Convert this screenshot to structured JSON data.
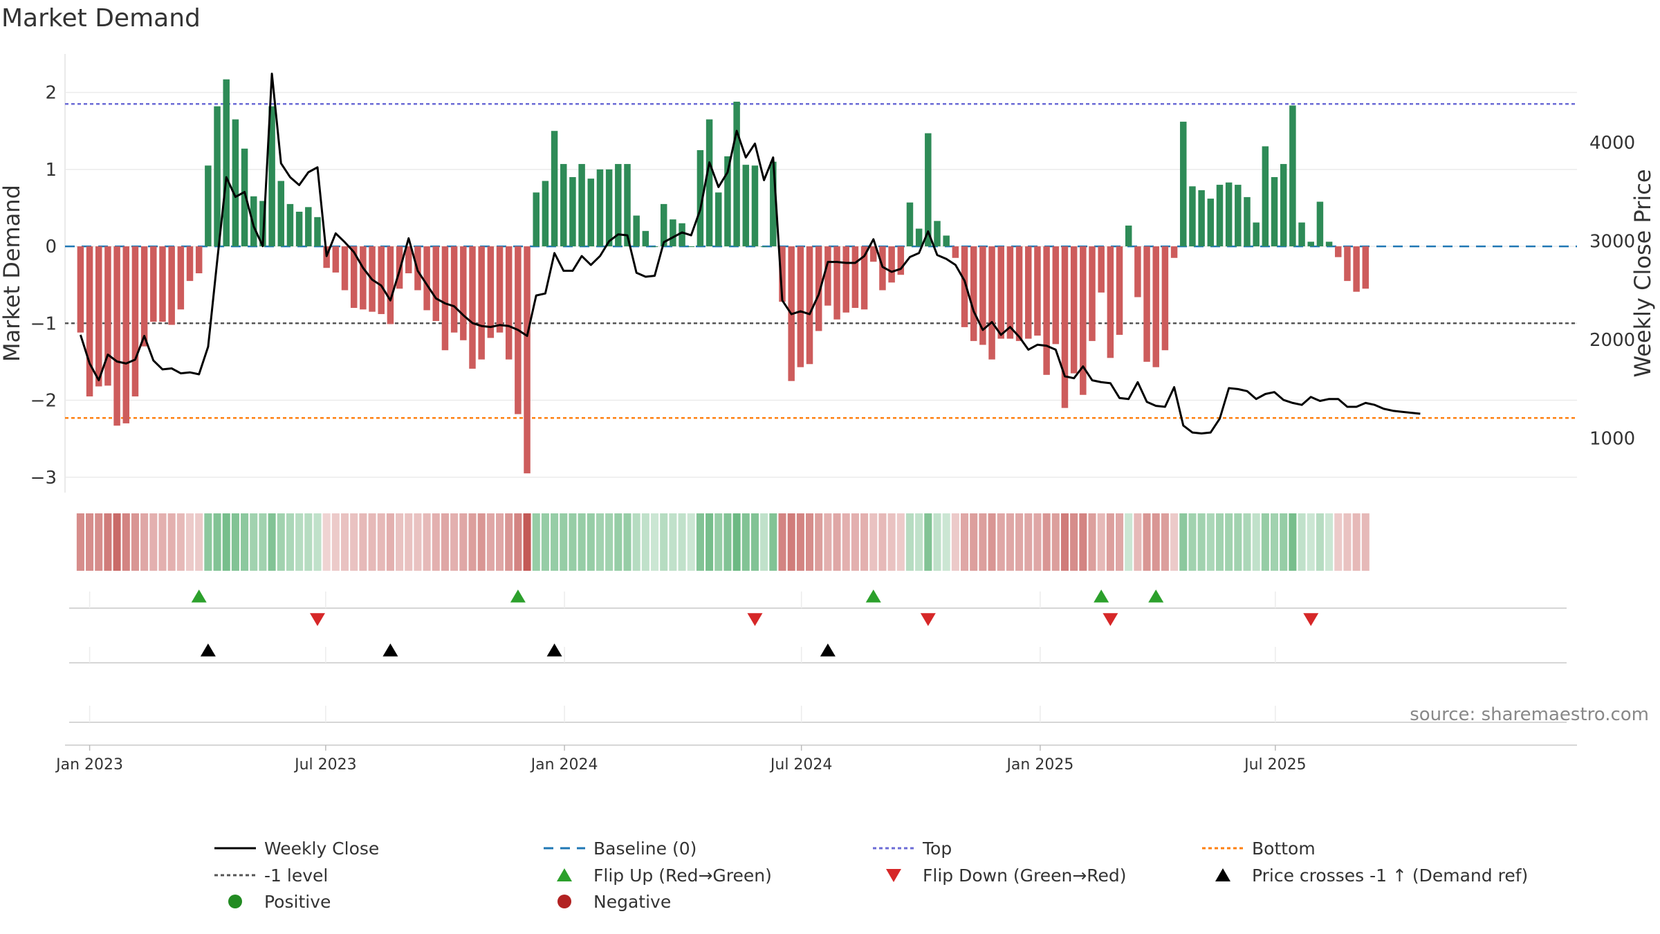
{
  "chart_data": {
    "type": "bar",
    "title": "Market Demand",
    "ylabel": "Market Demand",
    "y2label": "Weekly Close Price",
    "ylim": [
      -3.2,
      2.5
    ],
    "y2lim": [
      450,
      4900
    ],
    "yticks": [
      2,
      1,
      0,
      -1,
      -2,
      -3
    ],
    "ytick_labels": [
      "2",
      "1",
      "0",
      "−1",
      "−2",
      "−3"
    ],
    "y2ticks": [
      4000,
      3000,
      2000,
      1000
    ],
    "y2tick_labels": [
      "4000",
      "3000",
      "2000",
      "1000"
    ],
    "xlim": [
      -1.7,
      164.2
    ],
    "xticks": [
      {
        "label": "Jan 2023",
        "week": 1
      },
      {
        "label": "Jul 2023",
        "week": 26.9
      },
      {
        "label": "Jan 2024",
        "week": 53.1
      },
      {
        "label": "Jul 2024",
        "week": 79.1
      },
      {
        "label": "Jan 2025",
        "week": 105.3
      },
      {
        "label": "Jul 2025",
        "week": 131.1
      }
    ],
    "demand": [
      -1.12,
      -1.95,
      -1.82,
      -1.81,
      -2.33,
      -2.3,
      -1.95,
      -1.3,
      -0.98,
      -0.98,
      -1.02,
      -0.82,
      -0.45,
      -0.35,
      1.05,
      1.82,
      2.17,
      1.65,
      1.27,
      0.65,
      0.59,
      1.82,
      0.85,
      0.55,
      0.45,
      0.51,
      0.38,
      -0.28,
      -0.34,
      -0.57,
      -0.8,
      -0.82,
      -0.85,
      -0.88,
      -1.01,
      -0.55,
      -0.35,
      -0.57,
      -0.83,
      -0.97,
      -1.35,
      -1.12,
      -1.22,
      -1.59,
      -1.47,
      -1.19,
      -1.12,
      -1.47,
      -2.18,
      -2.95,
      0.7,
      0.85,
      1.5,
      1.07,
      0.9,
      1.07,
      0.88,
      1.0,
      1.0,
      1.07,
      1.07,
      0.4,
      0.2,
      0.0,
      0.55,
      0.35,
      0.3,
      0.0,
      1.25,
      1.65,
      0.7,
      1.17,
      1.88,
      1.06,
      1.05,
      0.0,
      1.1,
      -0.72,
      -1.75,
      -1.57,
      -1.53,
      -1.1,
      -0.77,
      -0.95,
      -0.86,
      -0.8,
      -0.82,
      -0.2,
      -0.57,
      -0.47,
      -0.37,
      0.57,
      0.23,
      1.47,
      0.33,
      0.14,
      -0.15,
      -1.05,
      -1.23,
      -1.28,
      -1.47,
      -1.2,
      -1.2,
      -1.23,
      -1.2,
      -1.16,
      -1.67,
      -1.27,
      -2.1,
      -1.65,
      -1.93,
      -1.23,
      -0.6,
      -1.45,
      -1.15,
      0.27,
      -0.66,
      -1.5,
      -1.57,
      -1.35,
      -0.15,
      1.62,
      0.78,
      0.73,
      0.62,
      0.8,
      0.83,
      0.8,
      0.64,
      0.31,
      1.3,
      0.9,
      1.07,
      1.83,
      0.31,
      0.06,
      0.58,
      0.06,
      -0.14,
      -0.45,
      -0.59,
      -0.55
    ],
    "price": [
      2050,
      1760,
      1590,
      1850,
      1780,
      1760,
      1800,
      2040,
      1790,
      1700,
      1710,
      1660,
      1670,
      1650,
      1930,
      2800,
      3650,
      3450,
      3500,
      3150,
      2950,
      4700,
      3790,
      3650,
      3570,
      3700,
      3750,
      2850,
      3080,
      2990,
      2890,
      2730,
      2610,
      2550,
      2400,
      2700,
      3030,
      2700,
      2560,
      2420,
      2370,
      2340,
      2250,
      2170,
      2140,
      2130,
      2150,
      2140,
      2100,
      2040,
      2450,
      2470,
      2880,
      2700,
      2700,
      2850,
      2760,
      2850,
      3000,
      3070,
      3060,
      2680,
      2640,
      2650,
      2990,
      3040,
      3090,
      3060,
      3320,
      3800,
      3550,
      3700,
      4120,
      3850,
      3990,
      3620,
      3850,
      2400,
      2260,
      2290,
      2260,
      2460,
      2790,
      2790,
      2780,
      2780,
      2850,
      3020,
      2740,
      2690,
      2720,
      2840,
      2880,
      3100,
      2860,
      2820,
      2760,
      2600,
      2290,
      2100,
      2180,
      2050,
      2130,
      2030,
      1900,
      1950,
      1940,
      1900,
      1630,
      1610,
      1730,
      1590,
      1570,
      1560,
      1410,
      1400,
      1570,
      1370,
      1330,
      1320,
      1520,
      1130,
      1060,
      1050,
      1060,
      1200,
      1510,
      1500,
      1480,
      1400,
      1450,
      1470,
      1390,
      1360,
      1340,
      1420,
      1380,
      1400,
      1400,
      1320,
      1320,
      1360,
      1340,
      1300,
      1280,
      1270,
      1260,
      1250
    ],
    "band_alpha": [
      0.65,
      0.65,
      0.65,
      0.75,
      0.85,
      0.7,
      0.6,
      0.5,
      0.45,
      0.45,
      0.45,
      0.4,
      0.3,
      0.3,
      0.55,
      0.6,
      0.65,
      0.6,
      0.55,
      0.45,
      0.45,
      0.6,
      0.45,
      0.4,
      0.35,
      0.35,
      0.3,
      0.25,
      0.3,
      0.35,
      0.35,
      0.4,
      0.4,
      0.4,
      0.45,
      0.35,
      0.35,
      0.35,
      0.4,
      0.45,
      0.5,
      0.45,
      0.5,
      0.55,
      0.6,
      0.5,
      0.5,
      0.6,
      0.7,
      0.95,
      0.5,
      0.5,
      0.5,
      0.5,
      0.5,
      0.5,
      0.5,
      0.45,
      0.45,
      0.5,
      0.5,
      0.35,
      0.3,
      0.25,
      0.35,
      0.3,
      0.3,
      0.25,
      0.6,
      0.65,
      0.5,
      0.6,
      0.7,
      0.6,
      0.6,
      0.3,
      0.6,
      0.7,
      0.75,
      0.7,
      0.65,
      0.55,
      0.45,
      0.5,
      0.45,
      0.45,
      0.45,
      0.35,
      0.4,
      0.35,
      0.3,
      0.35,
      0.3,
      0.6,
      0.3,
      0.25,
      0.3,
      0.5,
      0.55,
      0.55,
      0.6,
      0.5,
      0.5,
      0.5,
      0.5,
      0.5,
      0.6,
      0.55,
      0.75,
      0.65,
      0.7,
      0.55,
      0.4,
      0.55,
      0.5,
      0.25,
      0.4,
      0.6,
      0.6,
      0.55,
      0.3,
      0.55,
      0.45,
      0.45,
      0.4,
      0.45,
      0.45,
      0.45,
      0.4,
      0.3,
      0.5,
      0.45,
      0.5,
      0.65,
      0.3,
      0.25,
      0.35,
      0.25,
      0.3,
      0.35,
      0.4,
      0.4
    ],
    "top_level": 1.85,
    "minus1_level": -1.0,
    "bottom_level": -2.23,
    "flip_up_weeks": [
      13,
      48,
      87,
      112,
      118
    ],
    "flip_down_weeks": [
      26,
      74,
      93,
      113,
      135
    ],
    "price_cross_weeks": [
      14,
      34,
      52,
      82
    ],
    "source": "source: sharemaestro.com",
    "legend": [
      {
        "label": "Weekly Close",
        "kind": "line",
        "color": "#000000"
      },
      {
        "label": "Baseline (0)",
        "kind": "dash",
        "color": "#1f77b4"
      },
      {
        "label": "Top",
        "kind": "dot",
        "color": "#6b6bd6"
      },
      {
        "label": "Bottom",
        "kind": "dot",
        "color": "#ff7f0e"
      },
      {
        "label": "-1 level",
        "kind": "dot",
        "color": "#555555"
      },
      {
        "label": "Flip Up (Red→Green)",
        "kind": "tri-up",
        "color": "#2ca02c"
      },
      {
        "label": "Flip Down (Green→Red)",
        "kind": "tri-down",
        "color": "#d62728"
      },
      {
        "label": "Price crosses -1 ↑ (Demand ref)",
        "kind": "tri-up",
        "color": "#000000"
      },
      {
        "label": "Positive",
        "kind": "circle",
        "color": "#228b22"
      },
      {
        "label": "Negative",
        "kind": "circle",
        "color": "#b22222"
      }
    ],
    "colors": {
      "positive": "#2e8b57",
      "negative": "#cd5c5c",
      "band_pos": "#2e9b4e",
      "band_neg": "#c0504d",
      "baseline": "#1f77b4",
      "grid": "#ebebeb"
    }
  }
}
